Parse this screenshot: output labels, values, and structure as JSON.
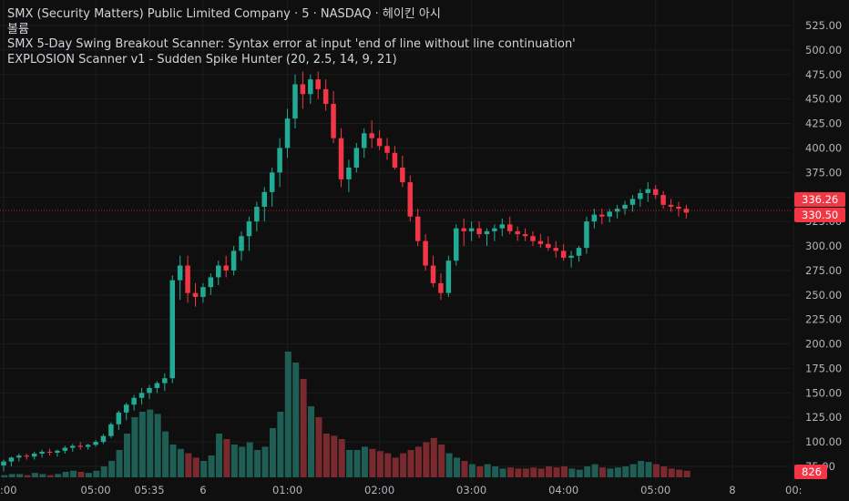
{
  "legend": {
    "line1": "SMX (Security Matters) Public Limited Company · 5 · NASDAQ · 헤이킨 아시",
    "line2": "볼륨",
    "line3": "SMX 5-Day Swing Breakout Scanner: Syntax error at input 'end of line without line continuation'",
    "line4": "EXPLOSION Scanner v1 - Sudden Spike Hunter (20, 2.5, 14, 9, 21)"
  },
  "colors": {
    "background": "#0f0f0f",
    "up": "#22ab94",
    "down": "#f23645",
    "up_volume": "#1e5e55",
    "down_volume": "#7a2a2f",
    "grid": "#1c1c1c",
    "text": "#b2b5be"
  },
  "badges": {
    "price_high": "336.26",
    "price_low": "330.50",
    "volume": "826"
  },
  "chart_data": {
    "type": "candlestick",
    "y_axis": {
      "ticks": [
        "525.00",
        "500.00",
        "475.00",
        "450.00",
        "425.00",
        "400.00",
        "375.00",
        "350.00",
        "325.00",
        "300.00",
        "275.00",
        "250.00",
        "225.00",
        "200.00",
        "175.00",
        "150.00",
        "125.00",
        "100.00",
        "75.00"
      ],
      "range": [
        62,
        538
      ]
    },
    "x_axis": {
      "labels": [
        {
          "label": ":00",
          "slot": 0
        },
        {
          "label": "05:00",
          "slot": 12
        },
        {
          "label": "05:35",
          "slot": 19
        },
        {
          "label": "6",
          "slot": 26
        },
        {
          "label": "01:00",
          "slot": 37
        },
        {
          "label": "02:00",
          "slot": 49
        },
        {
          "label": "03:00",
          "slot": 61
        },
        {
          "label": "04:00",
          "slot": 73
        },
        {
          "label": "05:00",
          "slot": 85
        },
        {
          "label": "8",
          "slot": 95
        },
        {
          "label": "00:",
          "slot": 103
        }
      ]
    },
    "candles": [
      [
        76,
        82,
        70,
        80,
        2
      ],
      [
        80,
        85,
        75,
        84,
        3
      ],
      [
        84,
        88,
        80,
        86,
        3
      ],
      [
        86,
        88,
        82,
        85,
        2
      ],
      [
        85,
        90,
        82,
        88,
        4
      ],
      [
        88,
        92,
        84,
        90,
        3
      ],
      [
        90,
        93,
        86,
        89,
        2
      ],
      [
        89,
        92,
        85,
        91,
        3
      ],
      [
        91,
        96,
        88,
        94,
        5
      ],
      [
        94,
        98,
        90,
        96,
        6
      ],
      [
        96,
        100,
        92,
        95,
        5
      ],
      [
        95,
        98,
        92,
        97,
        4
      ],
      [
        97,
        102,
        95,
        100,
        6
      ],
      [
        100,
        108,
        98,
        106,
        10
      ],
      [
        106,
        120,
        104,
        118,
        15
      ],
      [
        118,
        132,
        112,
        130,
        25
      ],
      [
        130,
        140,
        122,
        138,
        40
      ],
      [
        138,
        148,
        132,
        145,
        55
      ],
      [
        145,
        155,
        138,
        150,
        60
      ],
      [
        150,
        158,
        144,
        155,
        62
      ],
      [
        155,
        162,
        150,
        160,
        58
      ],
      [
        160,
        170,
        152,
        165,
        42
      ],
      [
        165,
        270,
        160,
        265,
        30
      ],
      [
        265,
        290,
        245,
        280,
        26
      ],
      [
        280,
        290,
        242,
        252,
        22
      ],
      [
        252,
        262,
        238,
        248,
        18
      ],
      [
        248,
        262,
        242,
        258,
        15
      ],
      [
        258,
        272,
        250,
        268,
        20
      ],
      [
        268,
        285,
        260,
        280,
        40
      ],
      [
        280,
        290,
        268,
        275,
        35
      ],
      [
        275,
        300,
        270,
        295,
        30
      ],
      [
        295,
        315,
        285,
        310,
        28
      ],
      [
        310,
        330,
        295,
        325,
        32
      ],
      [
        325,
        345,
        315,
        340,
        25
      ],
      [
        340,
        360,
        325,
        355,
        28
      ],
      [
        355,
        380,
        340,
        375,
        45
      ],
      [
        375,
        410,
        360,
        400,
        60
      ],
      [
        400,
        440,
        390,
        430,
        115
      ],
      [
        430,
        475,
        420,
        465,
        105
      ],
      [
        465,
        478,
        440,
        455,
        90
      ],
      [
        455,
        475,
        445,
        470,
        65
      ],
      [
        470,
        478,
        450,
        460,
        55
      ],
      [
        460,
        470,
        438,
        445,
        40
      ],
      [
        445,
        458,
        405,
        410,
        38
      ],
      [
        410,
        420,
        360,
        368,
        35
      ],
      [
        368,
        388,
        355,
        380,
        25
      ],
      [
        380,
        405,
        375,
        400,
        25
      ],
      [
        400,
        420,
        390,
        415,
        28
      ],
      [
        415,
        428,
        400,
        410,
        26
      ],
      [
        410,
        418,
        398,
        402,
        24
      ],
      [
        402,
        410,
        388,
        395,
        22
      ],
      [
        395,
        402,
        378,
        380,
        18
      ],
      [
        380,
        392,
        360,
        365,
        22
      ],
      [
        365,
        372,
        325,
        330,
        25
      ],
      [
        330,
        338,
        300,
        305,
        28
      ],
      [
        305,
        312,
        275,
        280,
        32
      ],
      [
        280,
        290,
        258,
        262,
        36
      ],
      [
        262,
        272,
        245,
        252,
        30
      ],
      [
        252,
        290,
        248,
        285,
        22
      ],
      [
        285,
        322,
        280,
        318,
        18
      ],
      [
        318,
        328,
        300,
        315,
        15
      ],
      [
        315,
        325,
        305,
        318,
        12
      ],
      [
        318,
        325,
        308,
        312,
        10
      ],
      [
        312,
        318,
        300,
        315,
        12
      ],
      [
        315,
        322,
        305,
        318,
        10
      ],
      [
        318,
        328,
        310,
        322,
        8
      ],
      [
        322,
        330,
        312,
        315,
        9
      ],
      [
        315,
        320,
        305,
        312,
        8
      ],
      [
        312,
        318,
        305,
        310,
        8
      ],
      [
        310,
        315,
        300,
        305,
        9
      ],
      [
        305,
        312,
        298,
        302,
        8
      ],
      [
        302,
        310,
        295,
        298,
        10
      ],
      [
        298,
        305,
        288,
        295,
        9
      ],
      [
        295,
        302,
        285,
        288,
        10
      ],
      [
        288,
        295,
        278,
        290,
        8
      ],
      [
        290,
        300,
        284,
        298,
        7
      ],
      [
        298,
        330,
        292,
        325,
        10
      ],
      [
        325,
        338,
        318,
        332,
        12
      ],
      [
        332,
        338,
        322,
        330,
        9
      ],
      [
        330,
        338,
        324,
        335,
        8
      ],
      [
        335,
        342,
        328,
        338,
        9
      ],
      [
        338,
        346,
        332,
        342,
        10
      ],
      [
        342,
        352,
        335,
        348,
        12
      ],
      [
        348,
        358,
        340,
        354,
        15
      ],
      [
        354,
        365,
        345,
        358,
        14
      ],
      [
        358,
        362,
        348,
        352,
        12
      ],
      [
        352,
        356,
        338,
        342,
        10
      ],
      [
        342,
        348,
        335,
        340,
        8
      ],
      [
        340,
        345,
        330,
        338,
        7
      ],
      [
        338,
        342,
        328,
        334,
        6
      ]
    ]
  }
}
